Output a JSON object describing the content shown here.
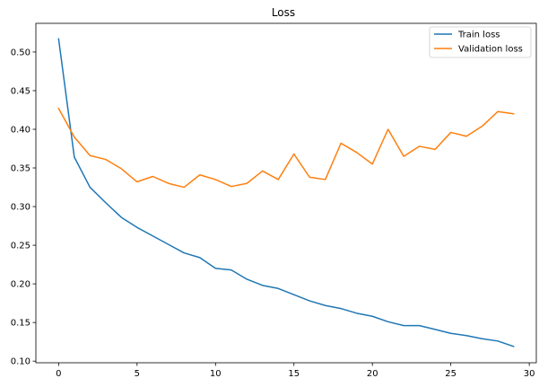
{
  "chart_data": {
    "type": "line",
    "title": "Loss",
    "xlabel": "",
    "ylabel": "",
    "xlim": [
      -1.45,
      30.45
    ],
    "ylim": [
      0.0979,
      0.5371
    ],
    "xticks": [
      0,
      5,
      10,
      15,
      20,
      25,
      30
    ],
    "yticks": [
      0.1,
      0.15,
      0.2,
      0.25,
      0.3,
      0.35,
      0.4,
      0.45,
      0.5
    ],
    "ytick_labels": [
      "0.10",
      "0.15",
      "0.20",
      "0.25",
      "0.30",
      "0.35",
      "0.40",
      "0.45",
      "0.50"
    ],
    "grid": false,
    "legend_position": "top-right",
    "x": [
      0,
      1,
      2,
      3,
      4,
      5,
      6,
      7,
      8,
      9,
      10,
      11,
      12,
      13,
      14,
      15,
      16,
      17,
      18,
      19,
      20,
      21,
      22,
      23,
      24,
      25,
      26,
      27,
      28,
      29
    ],
    "series": [
      {
        "name": "Train loss",
        "color": "#1f77b4",
        "values": [
          0.517,
          0.364,
          0.325,
          0.305,
          0.286,
          0.273,
          0.262,
          0.251,
          0.24,
          0.234,
          0.22,
          0.218,
          0.206,
          0.198,
          0.194,
          0.186,
          0.178,
          0.172,
          0.168,
          0.162,
          0.158,
          0.151,
          0.146,
          0.146,
          0.141,
          0.136,
          0.133,
          0.129,
          0.126,
          0.119
        ]
      },
      {
        "name": "Validation loss",
        "color": "#ff7f0e",
        "values": [
          0.427,
          0.39,
          0.366,
          0.361,
          0.349,
          0.332,
          0.339,
          0.33,
          0.325,
          0.341,
          0.335,
          0.326,
          0.33,
          0.346,
          0.335,
          0.368,
          0.338,
          0.335,
          0.382,
          0.37,
          0.355,
          0.4,
          0.365,
          0.378,
          0.374,
          0.396,
          0.391,
          0.404,
          0.423,
          0.42
        ]
      }
    ]
  }
}
